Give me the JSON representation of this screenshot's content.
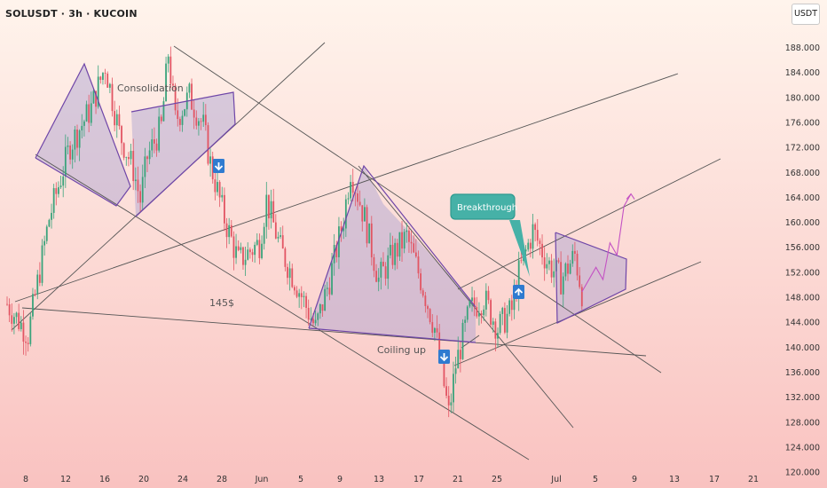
{
  "header": {
    "symbol_title": "SOLUSDT · 3h · KUCOIN",
    "currency": "USDT"
  },
  "colors": {
    "background_top": "#fff4ec",
    "background_bottom": "#f9c2c0",
    "candle_up": "#3aa37b",
    "candle_down": "#e25563",
    "pattern_fill": "#a9a0d0",
    "pattern_edge": "#6f46a8",
    "trendline": "#555555",
    "callout_fill": "#46b1a7",
    "callout_border": "#2e9a90",
    "arrow_box": "#2f7bd0",
    "projection": "#c452c4"
  },
  "annotations": {
    "consolidation": "Consolidation",
    "breakthrough": "Breakthrough",
    "coiling": "Coiling up",
    "price_level": "145$"
  },
  "chart_data": {
    "type": "candlestick",
    "timeframe": "3h",
    "ylim": [
      120,
      190
    ],
    "y_ticks": [
      "188.000",
      "184.000",
      "180.000",
      "176.000",
      "172.000",
      "168.000",
      "164.000",
      "160.000",
      "156.000",
      "152.000",
      "148.000",
      "144.000",
      "140.000",
      "136.000",
      "132.000",
      "128.000",
      "124.000",
      "120.000"
    ],
    "x_ticks": [
      "8",
      "12",
      "16",
      "20",
      "24",
      "28",
      "Jun",
      "5",
      "9",
      "13",
      "17",
      "21",
      "25",
      "Jul",
      "5",
      "9",
      "13",
      "17",
      "21"
    ],
    "price_path": [
      [
        0,
        146
      ],
      [
        3,
        141
      ],
      [
        6,
        160
      ],
      [
        9,
        172
      ],
      [
        12,
        178
      ],
      [
        14,
        185
      ],
      [
        16,
        174
      ],
      [
        18,
        168
      ],
      [
        19,
        163
      ],
      [
        20,
        170
      ],
      [
        22,
        175
      ],
      [
        23,
        187
      ],
      [
        24,
        176
      ],
      [
        26,
        180
      ],
      [
        28,
        175
      ],
      [
        29,
        169
      ],
      [
        31,
        160
      ],
      [
        33,
        153
      ],
      [
        36,
        156
      ],
      [
        37,
        163
      ],
      [
        39,
        155
      ],
      [
        41,
        150
      ],
      [
        44,
        142
      ],
      [
        46,
        150
      ],
      [
        48,
        160
      ],
      [
        49,
        168
      ],
      [
        51,
        160
      ],
      [
        53,
        150
      ],
      [
        55,
        154
      ],
      [
        57,
        157
      ],
      [
        59,
        150
      ],
      [
        61,
        142
      ],
      [
        62,
        135
      ],
      [
        63,
        128
      ],
      [
        64,
        136
      ],
      [
        66,
        145
      ],
      [
        68,
        147
      ],
      [
        70,
        142
      ],
      [
        72,
        145
      ],
      [
        73,
        151
      ],
      [
        75,
        158
      ],
      [
        77,
        153
      ],
      [
        79,
        150
      ],
      [
        81,
        154
      ],
      [
        82,
        148
      ]
    ],
    "projection": [
      [
        82,
        148
      ],
      [
        84,
        152
      ],
      [
        85,
        150
      ],
      [
        86,
        156
      ],
      [
        87,
        154
      ],
      [
        88,
        162
      ],
      [
        89,
        164
      ]
    ],
    "patterns": [
      "Consolidation",
      "Coiling up",
      "Breakthrough"
    ]
  }
}
